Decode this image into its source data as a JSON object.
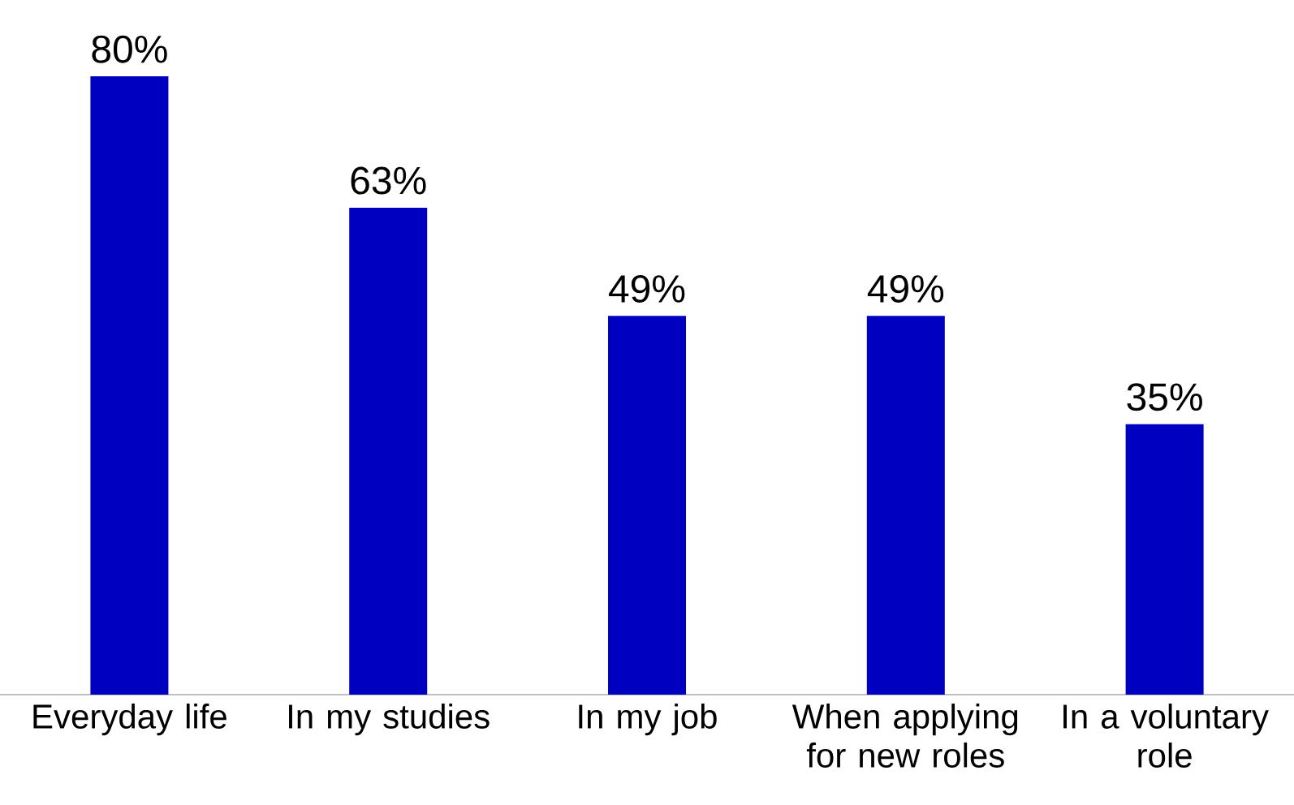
{
  "chart_data": {
    "type": "bar",
    "categories": [
      "Everyday life",
      "In my studies",
      "In my job",
      "When applying for new roles",
      "In a voluntary role"
    ],
    "values": [
      80,
      63,
      49,
      49,
      35
    ],
    "value_labels": [
      "80%",
      "63%",
      "49%",
      "49%",
      "35%"
    ],
    "color": "#0000c0",
    "tick_labels": "x"
  }
}
